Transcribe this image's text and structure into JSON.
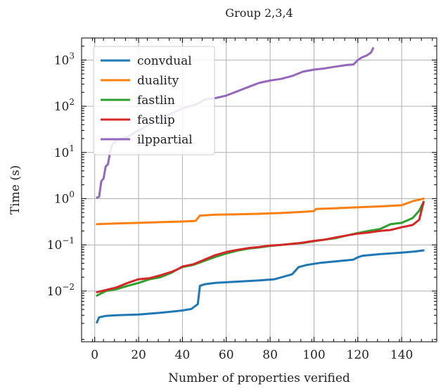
{
  "chart_data": {
    "type": "line",
    "title": "Group 2,3,4",
    "xlabel": "Number of properties verified",
    "ylabel": "Time (s)",
    "xlim": [
      -6,
      156
    ],
    "ylim": [
      0.0008,
      3000
    ],
    "y_scale": "log",
    "grid": true,
    "legend_position": "top-left",
    "x_ticks": [
      0,
      20,
      40,
      60,
      80,
      100,
      120,
      140
    ],
    "x_tick_labels": [
      "0",
      "20",
      "40",
      "60",
      "80",
      "100",
      "120",
      "140"
    ],
    "y_ticks": [
      0.01,
      0.1,
      1,
      10,
      100,
      1000
    ],
    "y_tick_labels": [
      {
        "base": "10",
        "exp": "−2"
      },
      {
        "base": "10",
        "exp": "−1"
      },
      {
        "base": "10",
        "exp": "0"
      },
      {
        "base": "10",
        "exp": "1"
      },
      {
        "base": "10",
        "exp": "2"
      },
      {
        "base": "10",
        "exp": "3"
      }
    ],
    "series": [
      {
        "name": "convdual",
        "color": "#1f77b4",
        "points": [
          [
            1,
            0.0021
          ],
          [
            2,
            0.0027
          ],
          [
            5,
            0.0029
          ],
          [
            10,
            0.003
          ],
          [
            20,
            0.0031
          ],
          [
            30,
            0.0034
          ],
          [
            40,
            0.0038
          ],
          [
            44,
            0.0041
          ],
          [
            47,
            0.0052
          ],
          [
            48,
            0.013
          ],
          [
            50,
            0.014
          ],
          [
            55,
            0.015
          ],
          [
            65,
            0.016
          ],
          [
            75,
            0.017
          ],
          [
            82,
            0.018
          ],
          [
            87,
            0.021
          ],
          [
            90,
            0.023
          ],
          [
            93,
            0.033
          ],
          [
            97,
            0.037
          ],
          [
            103,
            0.041
          ],
          [
            110,
            0.044
          ],
          [
            118,
            0.048
          ],
          [
            120,
            0.054
          ],
          [
            122,
            0.058
          ],
          [
            130,
            0.063
          ],
          [
            140,
            0.068
          ],
          [
            146,
            0.072
          ],
          [
            150,
            0.076
          ]
        ]
      },
      {
        "name": "duality",
        "color": "#ff7f0e",
        "points": [
          [
            1,
            0.28
          ],
          [
            10,
            0.29
          ],
          [
            20,
            0.3
          ],
          [
            30,
            0.31
          ],
          [
            40,
            0.32
          ],
          [
            46,
            0.33
          ],
          [
            48,
            0.43
          ],
          [
            55,
            0.45
          ],
          [
            65,
            0.46
          ],
          [
            75,
            0.47
          ],
          [
            85,
            0.49
          ],
          [
            95,
            0.52
          ],
          [
            100,
            0.54
          ],
          [
            101,
            0.6
          ],
          [
            110,
            0.62
          ],
          [
            120,
            0.65
          ],
          [
            130,
            0.68
          ],
          [
            140,
            0.72
          ],
          [
            145,
            0.88
          ],
          [
            150,
            1.0
          ]
        ]
      },
      {
        "name": "fastlin",
        "color": "#2ca02c",
        "points": [
          [
            1,
            0.008
          ],
          [
            5,
            0.01
          ],
          [
            10,
            0.011
          ],
          [
            15,
            0.013
          ],
          [
            20,
            0.015
          ],
          [
            25,
            0.018
          ],
          [
            30,
            0.02
          ],
          [
            35,
            0.025
          ],
          [
            38,
            0.03
          ],
          [
            40,
            0.033
          ],
          [
            45,
            0.037
          ],
          [
            50,
            0.045
          ],
          [
            55,
            0.055
          ],
          [
            60,
            0.065
          ],
          [
            65,
            0.075
          ],
          [
            70,
            0.083
          ],
          [
            75,
            0.088
          ],
          [
            80,
            0.095
          ],
          [
            85,
            0.1
          ],
          [
            90,
            0.105
          ],
          [
            95,
            0.11
          ],
          [
            100,
            0.12
          ],
          [
            105,
            0.13
          ],
          [
            110,
            0.14
          ],
          [
            115,
            0.16
          ],
          [
            120,
            0.18
          ],
          [
            125,
            0.2
          ],
          [
            130,
            0.22
          ],
          [
            135,
            0.28
          ],
          [
            140,
            0.3
          ],
          [
            145,
            0.38
          ],
          [
            148,
            0.55
          ],
          [
            150,
            0.85
          ]
        ]
      },
      {
        "name": "fastlip",
        "color": "#d62728",
        "points": [
          [
            1,
            0.0095
          ],
          [
            5,
            0.0105
          ],
          [
            10,
            0.012
          ],
          [
            15,
            0.015
          ],
          [
            20,
            0.018
          ],
          [
            25,
            0.019
          ],
          [
            30,
            0.022
          ],
          [
            35,
            0.026
          ],
          [
            38,
            0.03
          ],
          [
            40,
            0.034
          ],
          [
            45,
            0.038
          ],
          [
            50,
            0.048
          ],
          [
            55,
            0.06
          ],
          [
            60,
            0.07
          ],
          [
            65,
            0.078
          ],
          [
            70,
            0.085
          ],
          [
            75,
            0.09
          ],
          [
            80,
            0.097
          ],
          [
            85,
            0.1
          ],
          [
            90,
            0.105
          ],
          [
            95,
            0.112
          ],
          [
            100,
            0.122
          ],
          [
            105,
            0.13
          ],
          [
            110,
            0.145
          ],
          [
            115,
            0.16
          ],
          [
            120,
            0.175
          ],
          [
            125,
            0.185
          ],
          [
            130,
            0.2
          ],
          [
            135,
            0.21
          ],
          [
            140,
            0.24
          ],
          [
            145,
            0.27
          ],
          [
            148,
            0.35
          ],
          [
            150,
            0.85
          ]
        ]
      },
      {
        "name": "ilppartial",
        "color": "#9467bd",
        "points": [
          [
            1,
            1.05
          ],
          [
            2,
            1.1
          ],
          [
            3,
            2.4
          ],
          [
            4,
            2.7
          ],
          [
            5,
            5.0
          ],
          [
            6,
            5.5
          ],
          [
            7,
            10
          ],
          [
            8,
            15
          ],
          [
            10,
            18
          ],
          [
            15,
            22
          ],
          [
            20,
            30
          ],
          [
            25,
            40
          ],
          [
            30,
            55
          ],
          [
            35,
            70
          ],
          [
            40,
            90
          ],
          [
            45,
            105
          ],
          [
            48,
            120
          ],
          [
            50,
            140
          ],
          [
            55,
            150
          ],
          [
            60,
            170
          ],
          [
            65,
            210
          ],
          [
            70,
            260
          ],
          [
            75,
            320
          ],
          [
            80,
            360
          ],
          [
            85,
            390
          ],
          [
            90,
            450
          ],
          [
            95,
            560
          ],
          [
            100,
            620
          ],
          [
            105,
            660
          ],
          [
            110,
            720
          ],
          [
            115,
            780
          ],
          [
            118,
            800
          ],
          [
            120,
            1000
          ],
          [
            122,
            1150
          ],
          [
            124,
            1250
          ],
          [
            126,
            1450
          ],
          [
            127,
            1800
          ]
        ]
      }
    ]
  }
}
